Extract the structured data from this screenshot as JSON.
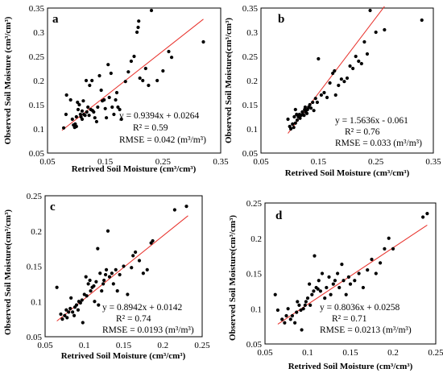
{
  "chart_data": [
    {
      "type": "scatter",
      "panel": "a",
      "xlabel": "Retrived Soil Moisture (cm³/cm³)",
      "ylabel": "Observed Soil Moisture (cm³/cm³)",
      "xlim": [
        0.05,
        0.35
      ],
      "ylim": [
        0.05,
        0.35
      ],
      "xticks": [
        "0.05",
        "0.15",
        "0.25",
        "0.35"
      ],
      "yticks": [
        "0.05",
        "0.1",
        "0.15",
        "0.2",
        "0.25",
        "0.3",
        "0.35"
      ],
      "fit_line": {
        "slope": 0.9394,
        "intercept": 0.0264,
        "x_range": [
          0.075,
          0.32
        ],
        "color": "#e8302a"
      },
      "annotations": [
        "y = 0.9394x + 0.0264",
        "R² = 0.59",
        "RMSE = 0.042 (m³/m³)"
      ],
      "points": [
        [
          0.078,
          0.102
        ],
        [
          0.082,
          0.13
        ],
        [
          0.083,
          0.17
        ],
        [
          0.09,
          0.16
        ],
        [
          0.093,
          0.12
        ],
        [
          0.095,
          0.108
        ],
        [
          0.097,
          0.103
        ],
        [
          0.098,
          0.11
        ],
        [
          0.1,
          0.105
        ],
        [
          0.1,
          0.125
        ],
        [
          0.102,
          0.155
        ],
        [
          0.103,
          0.14
        ],
        [
          0.105,
          0.15
        ],
        [
          0.107,
          0.13
        ],
        [
          0.108,
          0.125
        ],
        [
          0.11,
          0.12
        ],
        [
          0.11,
          0.137
        ],
        [
          0.112,
          0.158
        ],
        [
          0.113,
          0.13
        ],
        [
          0.115,
          0.128
        ],
        [
          0.117,
          0.2
        ],
        [
          0.118,
          0.135
        ],
        [
          0.12,
          0.145
        ],
        [
          0.122,
          0.128
        ],
        [
          0.123,
          0.19
        ],
        [
          0.125,
          0.14
        ],
        [
          0.127,
          0.2
        ],
        [
          0.128,
          0.138
        ],
        [
          0.13,
          0.135
        ],
        [
          0.132,
          0.123
        ],
        [
          0.135,
          0.115
        ],
        [
          0.137,
          0.145
        ],
        [
          0.14,
          0.21
        ],
        [
          0.143,
          0.18
        ],
        [
          0.145,
          0.158
        ],
        [
          0.148,
          0.16
        ],
        [
          0.15,
          0.142
        ],
        [
          0.152,
          0.123
        ],
        [
          0.155,
          0.233
        ],
        [
          0.157,
          0.165
        ],
        [
          0.16,
          0.215
        ],
        [
          0.162,
          0.145
        ],
        [
          0.165,
          0.13
        ],
        [
          0.168,
          0.16
        ],
        [
          0.17,
          0.175
        ],
        [
          0.172,
          0.145
        ],
        [
          0.175,
          0.14
        ],
        [
          0.178,
          0.12
        ],
        [
          0.185,
          0.198
        ],
        [
          0.19,
          0.218
        ],
        [
          0.195,
          0.24
        ],
        [
          0.2,
          0.25
        ],
        [
          0.205,
          0.3
        ],
        [
          0.207,
          0.31
        ],
        [
          0.208,
          0.323
        ],
        [
          0.21,
          0.205
        ],
        [
          0.215,
          0.2
        ],
        [
          0.22,
          0.225
        ],
        [
          0.225,
          0.19
        ],
        [
          0.23,
          0.345
        ],
        [
          0.24,
          0.2
        ],
        [
          0.25,
          0.22
        ],
        [
          0.26,
          0.26
        ],
        [
          0.265,
          0.248
        ],
        [
          0.32,
          0.28
        ]
      ]
    },
    {
      "type": "scatter",
      "panel": "b",
      "xlabel": "Retrived Soil Moisture (cm³/cm³)",
      "ylabel": "Observed Soil Moisture(cm³/cm³)",
      "xlim": [
        0.05,
        0.35
      ],
      "ylim": [
        0.05,
        0.35
      ],
      "xticks": [
        "0.05",
        "0.15",
        "0.25",
        "0.35"
      ],
      "yticks": [
        "0.05",
        "0.1",
        "0.15",
        "0.2",
        "0.25",
        "0.3",
        "0.35"
      ],
      "fit_line": {
        "slope": 1.5636,
        "intercept": -0.061,
        "x_range": [
          0.097,
          0.265
        ],
        "color": "#e8302a"
      },
      "annotations": [
        "y = 1.5636x - 0.061",
        "R² = 0.76",
        "RMSE = 0.033 (m³/m³)"
      ],
      "points": [
        [
          0.097,
          0.12
        ],
        [
          0.1,
          0.105
        ],
        [
          0.102,
          0.1
        ],
        [
          0.105,
          0.11
        ],
        [
          0.107,
          0.103
        ],
        [
          0.108,
          0.125
        ],
        [
          0.11,
          0.112
        ],
        [
          0.11,
          0.14
        ],
        [
          0.112,
          0.13
        ],
        [
          0.113,
          0.118
        ],
        [
          0.115,
          0.125
        ],
        [
          0.117,
          0.13
        ],
        [
          0.118,
          0.122
        ],
        [
          0.12,
          0.128
        ],
        [
          0.122,
          0.135
        ],
        [
          0.123,
          0.13
        ],
        [
          0.125,
          0.128
        ],
        [
          0.126,
          0.14
        ],
        [
          0.127,
          0.145
        ],
        [
          0.128,
          0.135
        ],
        [
          0.13,
          0.132
        ],
        [
          0.131,
          0.14
        ],
        [
          0.133,
          0.145
        ],
        [
          0.135,
          0.15
        ],
        [
          0.137,
          0.143
        ],
        [
          0.14,
          0.155
        ],
        [
          0.142,
          0.138
        ],
        [
          0.145,
          0.163
        ],
        [
          0.148,
          0.155
        ],
        [
          0.15,
          0.245
        ],
        [
          0.155,
          0.17
        ],
        [
          0.16,
          0.175
        ],
        [
          0.165,
          0.165
        ],
        [
          0.17,
          0.195
        ],
        [
          0.175,
          0.215
        ],
        [
          0.178,
          0.22
        ],
        [
          0.18,
          0.17
        ],
        [
          0.185,
          0.19
        ],
        [
          0.19,
          0.203
        ],
        [
          0.195,
          0.198
        ],
        [
          0.2,
          0.205
        ],
        [
          0.205,
          0.23
        ],
        [
          0.21,
          0.225
        ],
        [
          0.215,
          0.25
        ],
        [
          0.22,
          0.24
        ],
        [
          0.225,
          0.235
        ],
        [
          0.23,
          0.28
        ],
        [
          0.235,
          0.255
        ],
        [
          0.24,
          0.345
        ],
        [
          0.25,
          0.3
        ],
        [
          0.265,
          0.305
        ],
        [
          0.33,
          0.325
        ]
      ]
    },
    {
      "type": "scatter",
      "panel": "c",
      "xlabel": "Retrived Soil Moisture (cm³/cm³)",
      "ylabel": "Observed Soil Moisture(cm³/cm³)",
      "xlim": [
        0.05,
        0.25
      ],
      "ylim": [
        0.05,
        0.25
      ],
      "xticks": [
        "0.05",
        "0.1",
        "0.15",
        "0.2",
        "0.25"
      ],
      "yticks": [
        "0.05",
        "0.1",
        "0.15",
        "0.2",
        "0.25"
      ],
      "fit_line": {
        "slope": 0.8942,
        "intercept": 0.0142,
        "x_range": [
          0.065,
          0.232
        ],
        "color": "#e8302a"
      },
      "annotations": [
        "y = 0.8942x + 0.0142",
        "R² = 0.74",
        "RMSE = 0.0193 (m³/m³)"
      ],
      "points": [
        [
          0.065,
          0.12
        ],
        [
          0.07,
          0.082
        ],
        [
          0.072,
          0.075
        ],
        [
          0.075,
          0.08
        ],
        [
          0.077,
          0.088
        ],
        [
          0.078,
          0.077
        ],
        [
          0.08,
          0.085
        ],
        [
          0.082,
          0.09
        ],
        [
          0.083,
          0.105
        ],
        [
          0.085,
          0.085
        ],
        [
          0.087,
          0.08
        ],
        [
          0.088,
          0.092
        ],
        [
          0.09,
          0.095
        ],
        [
          0.092,
          0.088
        ],
        [
          0.093,
          0.1
        ],
        [
          0.095,
          0.098
        ],
        [
          0.097,
          0.102
        ],
        [
          0.098,
          0.07
        ],
        [
          0.1,
          0.11
        ],
        [
          0.102,
          0.135
        ],
        [
          0.103,
          0.108
        ],
        [
          0.105,
          0.125
        ],
        [
          0.107,
          0.13
        ],
        [
          0.108,
          0.115
        ],
        [
          0.11,
          0.12
        ],
        [
          0.112,
          0.122
        ],
        [
          0.113,
          0.1
        ],
        [
          0.115,
          0.128
        ],
        [
          0.117,
          0.175
        ],
        [
          0.118,
          0.095
        ],
        [
          0.12,
          0.14
        ],
        [
          0.122,
          0.115
        ],
        [
          0.124,
          0.125
        ],
        [
          0.125,
          0.13
        ],
        [
          0.127,
          0.138
        ],
        [
          0.128,
          0.145
        ],
        [
          0.13,
          0.2
        ],
        [
          0.132,
          0.135
        ],
        [
          0.135,
          0.14
        ],
        [
          0.137,
          0.125
        ],
        [
          0.14,
          0.145
        ],
        [
          0.142,
          0.115
        ],
        [
          0.145,
          0.138
        ],
        [
          0.15,
          0.15
        ],
        [
          0.155,
          0.11
        ],
        [
          0.16,
          0.148
        ],
        [
          0.162,
          0.165
        ],
        [
          0.165,
          0.17
        ],
        [
          0.17,
          0.158
        ],
        [
          0.175,
          0.14
        ],
        [
          0.18,
          0.145
        ],
        [
          0.185,
          0.183
        ],
        [
          0.187,
          0.186
        ],
        [
          0.215,
          0.23
        ],
        [
          0.23,
          0.235
        ]
      ]
    },
    {
      "type": "scatter",
      "panel": "d",
      "xlabel": "Retrived Soil Moisture (cm³/cm³)",
      "ylabel": "Observed Soil Moisture(cm³/cm³)",
      "xlim": [
        0.05,
        0.25
      ],
      "ylim": [
        0.05,
        0.25
      ],
      "xticks": [
        "0.05",
        "0.1",
        "0.15",
        "0.2",
        "0.25"
      ],
      "yticks": [
        "0.05",
        "0.1",
        "0.15",
        "0.2",
        "0.25"
      ],
      "fit_line": {
        "slope": 0.8036,
        "intercept": 0.0258,
        "x_range": [
          0.065,
          0.24
        ],
        "color": "#e8302a"
      },
      "annotations": [
        "y = 0.8036x + 0.0258",
        "R² = 0.71",
        "RMSE = 0.0213 (m³/m³)"
      ],
      "points": [
        [
          0.062,
          0.12
        ],
        [
          0.065,
          0.098
        ],
        [
          0.07,
          0.085
        ],
        [
          0.073,
          0.08
        ],
        [
          0.075,
          0.09
        ],
        [
          0.077,
          0.1
        ],
        [
          0.08,
          0.085
        ],
        [
          0.082,
          0.09
        ],
        [
          0.085,
          0.08
        ],
        [
          0.087,
          0.095
        ],
        [
          0.088,
          0.11
        ],
        [
          0.09,
          0.105
        ],
        [
          0.092,
          0.098
        ],
        [
          0.093,
          0.07
        ],
        [
          0.095,
          0.1
        ],
        [
          0.097,
          0.105
        ],
        [
          0.098,
          0.11
        ],
        [
          0.1,
          0.115
        ],
        [
          0.102,
          0.135
        ],
        [
          0.103,
          0.105
        ],
        [
          0.105,
          0.12
        ],
        [
          0.107,
          0.125
        ],
        [
          0.108,
          0.175
        ],
        [
          0.11,
          0.13
        ],
        [
          0.112,
          0.128
        ],
        [
          0.113,
          0.14
        ],
        [
          0.115,
          0.125
        ],
        [
          0.117,
          0.15
        ],
        [
          0.12,
          0.115
        ],
        [
          0.122,
          0.13
        ],
        [
          0.125,
          0.145
        ],
        [
          0.127,
          0.12
        ],
        [
          0.13,
          0.135
        ],
        [
          0.132,
          0.14
        ],
        [
          0.135,
          0.15
        ],
        [
          0.137,
          0.13
        ],
        [
          0.14,
          0.163
        ],
        [
          0.142,
          0.14
        ],
        [
          0.145,
          0.12
        ],
        [
          0.148,
          0.145
        ],
        [
          0.15,
          0.135
        ],
        [
          0.155,
          0.14
        ],
        [
          0.16,
          0.15
        ],
        [
          0.165,
          0.13
        ],
        [
          0.17,
          0.155
        ],
        [
          0.175,
          0.17
        ],
        [
          0.18,
          0.15
        ],
        [
          0.185,
          0.165
        ],
        [
          0.19,
          0.185
        ],
        [
          0.195,
          0.2
        ],
        [
          0.2,
          0.185
        ],
        [
          0.235,
          0.23
        ],
        [
          0.24,
          0.235
        ]
      ]
    }
  ]
}
